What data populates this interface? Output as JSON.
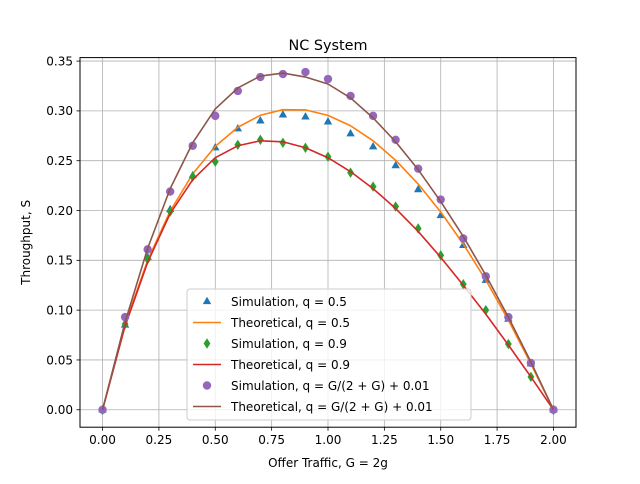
{
  "chart_data": {
    "type": "line",
    "title": "NC System",
    "xlabel": "Offer Traffic, G = 2g",
    "ylabel": "Throughput, S",
    "xlim": [
      -0.1,
      2.1
    ],
    "ylim": [
      -0.0175,
      0.3535
    ],
    "xticks": [
      0.0,
      0.25,
      0.5,
      0.75,
      1.0,
      1.25,
      1.5,
      1.75,
      2.0
    ],
    "xtick_labels": [
      "0.00",
      "0.25",
      "0.50",
      "0.75",
      "1.00",
      "1.25",
      "1.50",
      "1.75",
      "2.00"
    ],
    "yticks": [
      0.0,
      0.05,
      0.1,
      0.15,
      0.2,
      0.25,
      0.3,
      0.35
    ],
    "ytick_labels": [
      "0.00",
      "0.05",
      "0.10",
      "0.15",
      "0.20",
      "0.25",
      "0.30",
      "0.35"
    ],
    "grid": true,
    "legend_position": "lower-center",
    "x": [
      0.0,
      0.1,
      0.2,
      0.3,
      0.4,
      0.5,
      0.6,
      0.7,
      0.8,
      0.9,
      1.0,
      1.1,
      1.2,
      1.3,
      1.4,
      1.5,
      1.6,
      1.7,
      1.8,
      1.9,
      2.0
    ],
    "series": [
      {
        "name": "Simulation, q = 0.5",
        "style": "markers",
        "marker": "triangle",
        "color": "#1f77b4",
        "values": [
          0.0,
          0.085,
          0.153,
          0.201,
          0.235,
          0.263,
          0.282,
          0.29,
          0.296,
          0.294,
          0.289,
          0.277,
          0.264,
          0.245,
          0.221,
          0.195,
          0.165,
          0.13,
          0.091,
          0.046,
          0.0
        ]
      },
      {
        "name": "Theoretical, q = 0.5",
        "style": "line",
        "color": "#ff7f0e",
        "values": [
          0.0,
          0.0857,
          0.15,
          0.1994,
          0.2368,
          0.2644,
          0.2836,
          0.2956,
          0.3012,
          0.301,
          0.2955,
          0.2851,
          0.27,
          0.2505,
          0.2266,
          0.1985,
          0.1664,
          0.1302,
          0.09,
          0.0461,
          0.0
        ]
      },
      {
        "name": "Simulation, q = 0.9",
        "style": "markers",
        "marker": "diamond",
        "color": "#2ca02c",
        "values": [
          0.0,
          0.086,
          0.151,
          0.199,
          0.234,
          0.249,
          0.266,
          0.271,
          0.268,
          0.263,
          0.254,
          0.238,
          0.224,
          0.204,
          0.182,
          0.155,
          0.126,
          0.1,
          0.066,
          0.033,
          0.0
        ]
      },
      {
        "name": "Theoretical, q = 0.9",
        "style": "line",
        "color": "#d62728",
        "values": [
          0.0,
          0.084,
          0.148,
          0.197,
          0.231,
          0.253,
          0.265,
          0.27,
          0.269,
          0.263,
          0.253,
          0.239,
          0.222,
          0.202,
          0.179,
          0.153,
          0.125,
          0.096,
          0.065,
          0.033,
          0.0
        ]
      },
      {
        "name": "Simulation, q = G/(2 + G) + 0.01",
        "style": "markers",
        "marker": "circle",
        "color": "#9467bd",
        "values": [
          0.0,
          0.093,
          0.161,
          0.219,
          0.265,
          0.295,
          0.32,
          0.334,
          0.337,
          0.339,
          0.332,
          0.315,
          0.295,
          0.271,
          0.242,
          0.211,
          0.172,
          0.134,
          0.093,
          0.047,
          0.0
        ]
      },
      {
        "name": "Theoretical, q = G/(2 + G) + 0.01",
        "style": "line",
        "color": "#8c564b",
        "values": [
          0.0,
          0.088,
          0.162,
          0.222,
          0.268,
          0.302,
          0.323,
          0.335,
          0.338,
          0.334,
          0.327,
          0.313,
          0.293,
          0.269,
          0.241,
          0.209,
          0.174,
          0.135,
          0.093,
          0.048,
          0.0
        ]
      }
    ]
  }
}
